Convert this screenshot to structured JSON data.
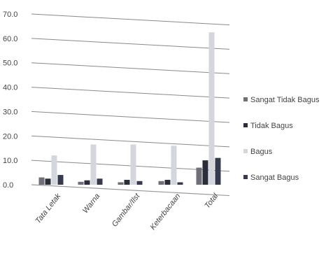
{
  "chart_data": {
    "type": "bar",
    "categories": [
      "Tata Letak",
      "Warna",
      "Gambar/Ilst",
      "Keterbacaan",
      "Total"
    ],
    "ylim": [
      0,
      70
    ],
    "yticks": [
      "0.0",
      "10.0",
      "20.0",
      "30.0",
      "40.0",
      "50.0",
      "60.0",
      "70.0"
    ],
    "grid": true,
    "legend_position": "right",
    "series": [
      {
        "name": "Sangat  Tidak Bagus",
        "color": "#6f6f77",
        "values": [
          3.0,
          1.2,
          1.0,
          1.5,
          7.0
        ]
      },
      {
        "name": "Tidak Bagus",
        "color": "#2b2d3a",
        "values": [
          2.5,
          1.8,
          2.0,
          2.0,
          10.0
        ]
      },
      {
        "name": "Bagus",
        "color": "#d4d6de",
        "values": [
          12.0,
          16.5,
          16.5,
          16.0,
          62.5
        ]
      },
      {
        "name": "Sangat  Bagus",
        "color": "#363a4c",
        "values": [
          4.0,
          2.5,
          1.5,
          1.0,
          11.0
        ]
      }
    ]
  }
}
